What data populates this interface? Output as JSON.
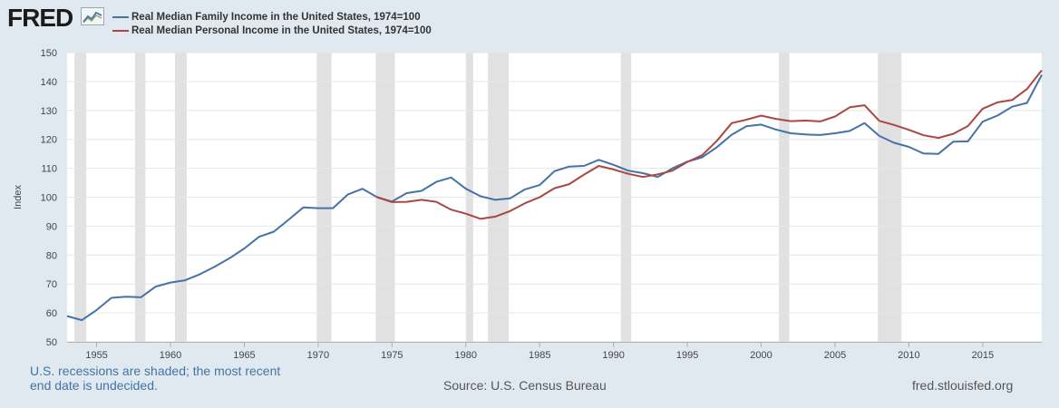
{
  "branding": {
    "logo_text": "FRED",
    "site_url": "fred.stlouisfed.org"
  },
  "chart_data": {
    "type": "line",
    "title": "",
    "xlabel": "",
    "ylabel": "Index",
    "xlim": [
      1953,
      2019
    ],
    "ylim": [
      50,
      150
    ],
    "yticks": [
      50,
      60,
      70,
      80,
      90,
      100,
      110,
      120,
      130,
      140,
      150
    ],
    "xticks": [
      1955,
      1960,
      1965,
      1970,
      1975,
      1980,
      1985,
      1990,
      1995,
      2000,
      2005,
      2010,
      2015
    ],
    "grid": true,
    "legend_position": "top-left",
    "recessions": [
      [
        1953.5,
        1954.3
      ],
      [
        1957.6,
        1958.3
      ],
      [
        1960.3,
        1961.1
      ],
      [
        1969.9,
        1970.9
      ],
      [
        1973.9,
        1975.2
      ],
      [
        1980.0,
        1980.5
      ],
      [
        1981.5,
        1982.9
      ],
      [
        1990.5,
        1991.2
      ],
      [
        2001.2,
        2001.9
      ],
      [
        2007.9,
        2009.5
      ]
    ],
    "series": [
      {
        "name": "Real Median Family Income in the United States, 1974=100",
        "color": "#4572a7",
        "x": [
          1953,
          1954,
          1955,
          1956,
          1957,
          1958,
          1959,
          1960,
          1961,
          1962,
          1963,
          1964,
          1965,
          1966,
          1967,
          1968,
          1969,
          1970,
          1971,
          1972,
          1973,
          1974,
          1975,
          1976,
          1977,
          1978,
          1979,
          1980,
          1981,
          1982,
          1983,
          1984,
          1985,
          1986,
          1987,
          1988,
          1989,
          1990,
          1991,
          1992,
          1993,
          1994,
          1995,
          1996,
          1997,
          1998,
          1999,
          2000,
          2001,
          2002,
          2003,
          2004,
          2005,
          2006,
          2007,
          2008,
          2009,
          2010,
          2011,
          2012,
          2013,
          2014,
          2015,
          2016,
          2017,
          2018,
          2019
        ],
        "values": [
          58.9,
          57.5,
          61.0,
          65.2,
          65.6,
          65.4,
          69.1,
          70.5,
          71.3,
          73.4,
          76.0,
          78.9,
          82.3,
          86.3,
          88.1,
          92.2,
          96.5,
          96.2,
          96.2,
          100.9,
          102.9,
          100.0,
          98.5,
          101.4,
          102.2,
          105.3,
          106.8,
          102.9,
          100.3,
          99.1,
          99.6,
          102.7,
          104.2,
          109.0,
          110.6,
          110.8,
          112.9,
          111.2,
          109.2,
          108.3,
          107.0,
          110.0,
          112.3,
          113.8,
          117.3,
          121.6,
          124.5,
          125.1,
          123.4,
          122.1,
          121.7,
          121.5,
          122.1,
          122.9,
          125.6,
          121.2,
          118.8,
          117.4,
          115.1,
          115.0,
          119.2,
          119.3,
          126.1,
          128.2,
          131.3,
          132.6,
          142.3
        ]
      },
      {
        "name": "Real Median Personal Income in the United States, 1974=100",
        "color": "#aa4643",
        "x": [
          1974,
          1975,
          1976,
          1977,
          1978,
          1979,
          1980,
          1981,
          1982,
          1983,
          1984,
          1985,
          1986,
          1987,
          1988,
          1989,
          1990,
          1991,
          1992,
          1993,
          1994,
          1995,
          1996,
          1997,
          1998,
          1999,
          2000,
          2001,
          2002,
          2003,
          2004,
          2005,
          2006,
          2007,
          2008,
          2009,
          2010,
          2011,
          2012,
          2013,
          2014,
          2015,
          2016,
          2017,
          2018,
          2019
        ],
        "values": [
          100.0,
          98.3,
          98.4,
          99.1,
          98.4,
          95.7,
          94.3,
          92.5,
          93.3,
          95.2,
          97.9,
          100.0,
          103.1,
          104.5,
          107.8,
          110.8,
          109.6,
          108.1,
          107.0,
          107.9,
          109.2,
          112.2,
          114.5,
          119.5,
          125.6,
          126.8,
          128.2,
          127.1,
          126.3,
          126.5,
          126.2,
          127.9,
          131.1,
          131.8,
          126.4,
          125.0,
          123.3,
          121.4,
          120.5,
          121.9,
          124.6,
          130.6,
          132.8,
          133.6,
          137.4,
          143.9
        ]
      }
    ]
  },
  "footer": {
    "recession_note": "U.S. recessions are shaded; the most recent end date is undecided.",
    "source": "Source: U.S. Census Bureau"
  },
  "colors": {
    "background": "#e1e9f0",
    "plot_background": "#ffffff",
    "recession_shade": "#e1e1e1",
    "note_text": "#3f75a6",
    "grid": "#e6e6e6"
  }
}
